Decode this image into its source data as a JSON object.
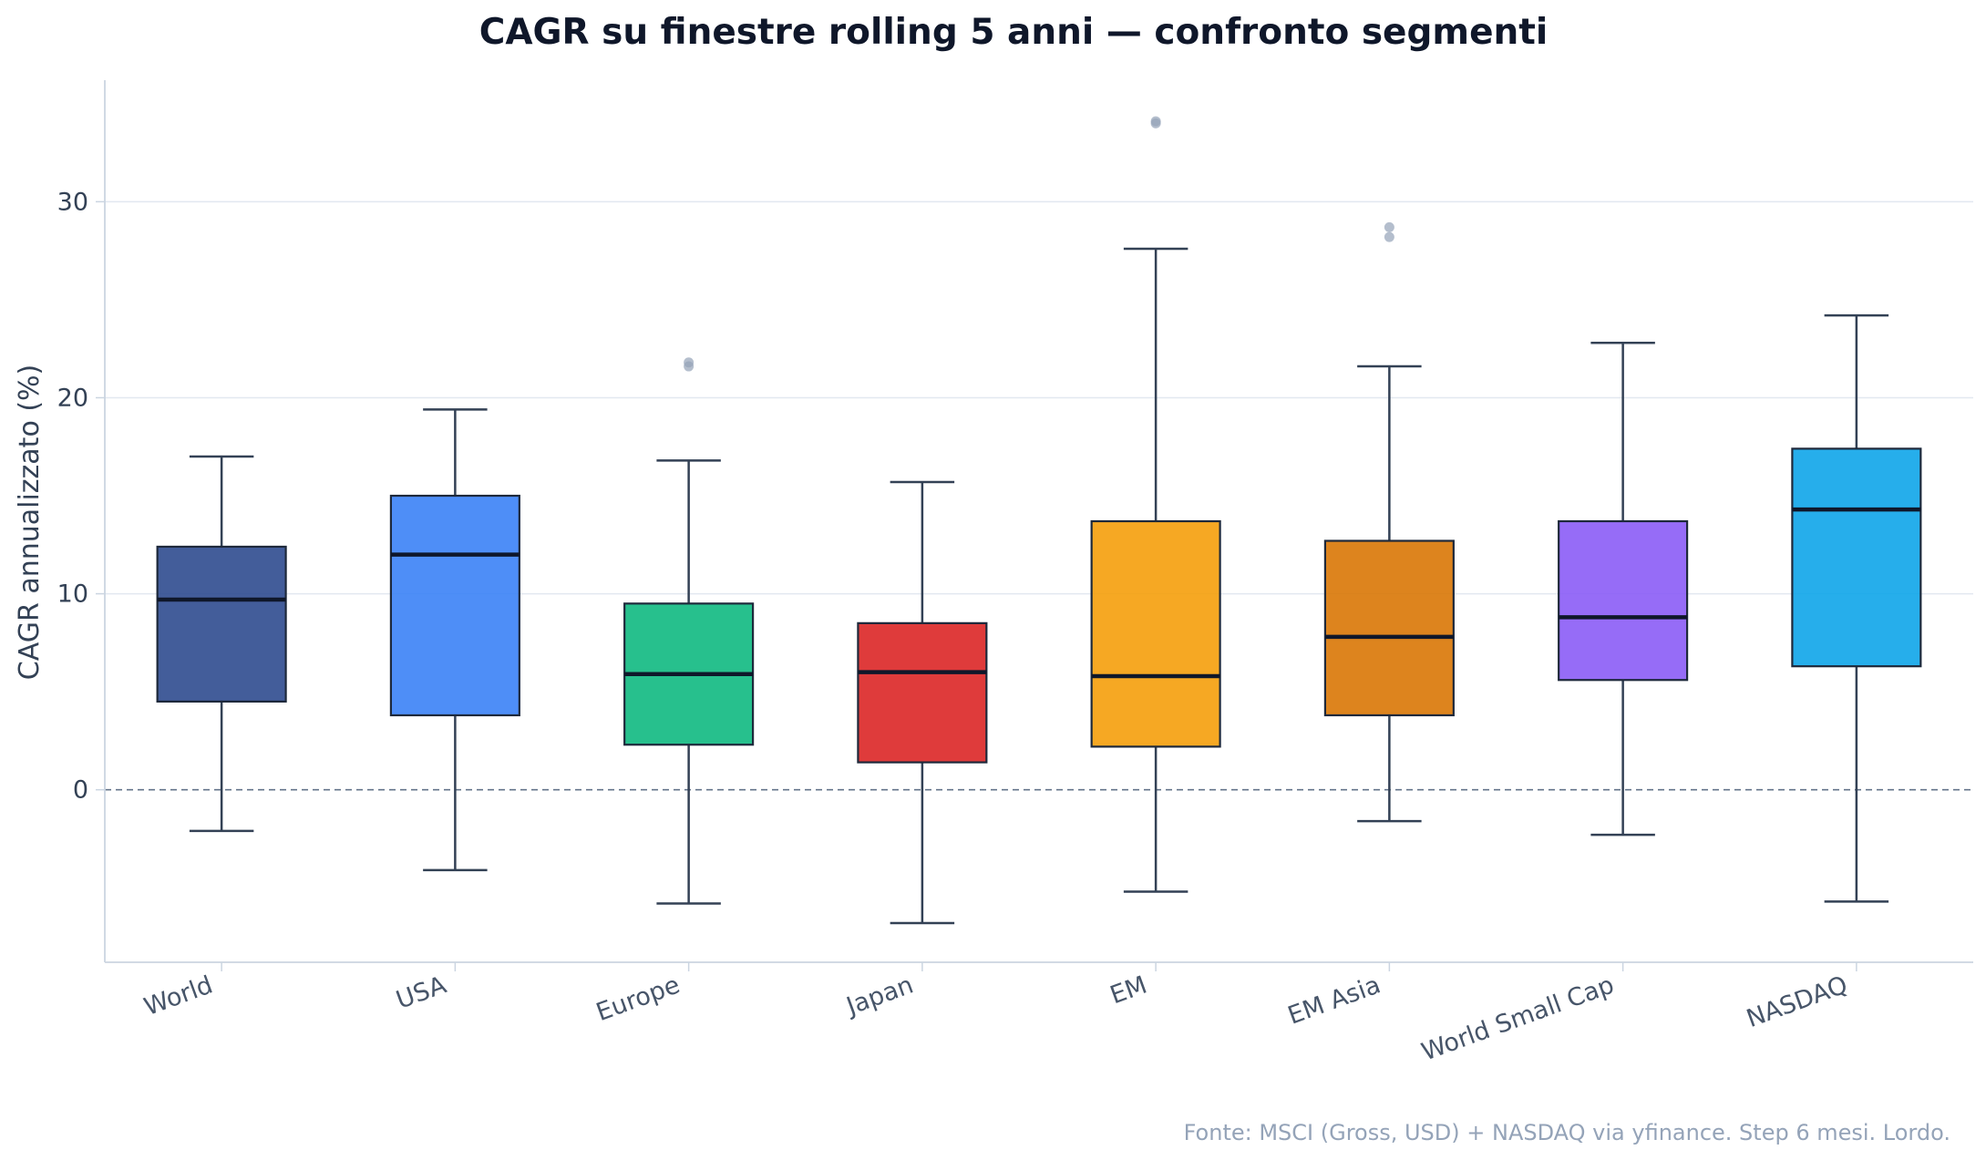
{
  "chart_data": {
    "type": "box",
    "title": "CAGR su finestre rolling 5 anni — confronto segmenti",
    "ylabel": "CAGR annualizzato (%)",
    "xlabel": "",
    "ylim": [
      -8.8,
      36.2
    ],
    "yticks": [
      0,
      10,
      20,
      30
    ],
    "reference_line": 0,
    "grid": "horizontal",
    "source_note": "Fonte: MSCI (Gross, USD) + NASDAQ via yfinance. Step 6 mesi. Lordo.",
    "colors": {
      "axis": "#cbd5e1",
      "grid": "#e2e8f0",
      "whisker": "#334155",
      "median": "#0f172a",
      "outlier": "#94a3b8",
      "zero_line": "#64748b"
    },
    "series": [
      {
        "name": "World",
        "color": "#2f4b8f",
        "whisker_low": -2.1,
        "q1": 4.5,
        "median": 9.7,
        "q3": 12.4,
        "whisker_high": 17.0,
        "outliers": []
      },
      {
        "name": "USA",
        "color": "#3b82f6",
        "whisker_low": -4.1,
        "q1": 3.8,
        "median": 12.0,
        "q3": 15.0,
        "whisker_high": 19.4,
        "outliers": []
      },
      {
        "name": "Europe",
        "color": "#10b981",
        "whisker_low": -5.8,
        "q1": 2.3,
        "median": 5.9,
        "q3": 9.5,
        "whisker_high": 16.8,
        "outliers": [
          21.6,
          21.8
        ]
      },
      {
        "name": "Japan",
        "color": "#dc2626",
        "whisker_low": -6.8,
        "q1": 1.4,
        "median": 6.0,
        "q3": 8.5,
        "whisker_high": 15.7,
        "outliers": []
      },
      {
        "name": "EM",
        "color": "#f59e0b",
        "whisker_low": -5.2,
        "q1": 2.2,
        "median": 5.8,
        "q3": 13.7,
        "whisker_high": 27.6,
        "outliers": [
          34.0,
          34.1
        ]
      },
      {
        "name": "EM Asia",
        "color": "#d97706",
        "whisker_low": -1.6,
        "q1": 3.8,
        "median": 7.8,
        "q3": 12.7,
        "whisker_high": 21.6,
        "outliers": [
          28.2,
          28.7
        ]
      },
      {
        "name": "World Small Cap",
        "color": "#8b5cf6",
        "whisker_low": -2.3,
        "q1": 5.6,
        "median": 8.8,
        "q3": 13.7,
        "whisker_high": 22.8,
        "outliers": []
      },
      {
        "name": "NASDAQ",
        "color": "#0ea5e9",
        "whisker_low": -5.7,
        "q1": 6.3,
        "median": 14.3,
        "q3": 17.4,
        "whisker_high": 24.2,
        "outliers": []
      }
    ]
  }
}
